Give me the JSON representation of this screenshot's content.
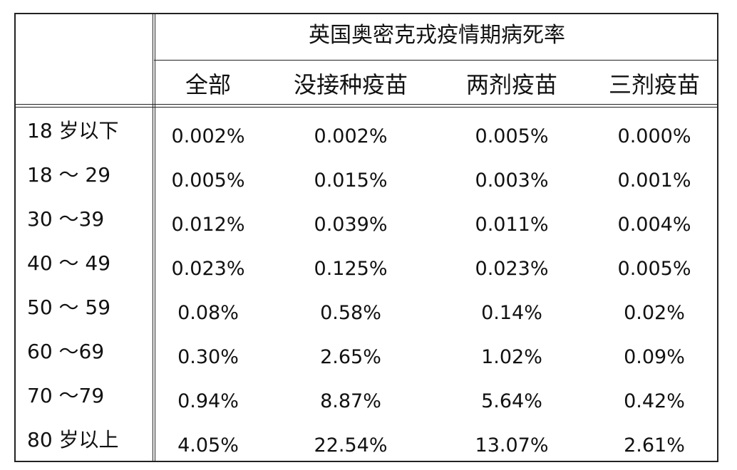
{
  "chart_data": {
    "type": "table",
    "title": "英国奥密克戎疫情期病死率",
    "columns": [
      "全部",
      "没接种疫苗",
      "两剂疫苗",
      "三剂疫苗"
    ],
    "rows": [
      {
        "label": "18 岁以下",
        "values": [
          "0.002%",
          "0.002%",
          "0.005%",
          "0.000%"
        ]
      },
      {
        "label": "18 ～ 29",
        "values": [
          "0.005%",
          "0.015%",
          "0.003%",
          "0.001%"
        ]
      },
      {
        "label": "30 ～39",
        "values": [
          "0.012%",
          "0.039%",
          "0.011%",
          "0.004%"
        ]
      },
      {
        "label": "40 ～ 49",
        "values": [
          "0.023%",
          "0.125%",
          "0.023%",
          "0.005%"
        ]
      },
      {
        "label": "50 ～ 59",
        "values": [
          "0.08%",
          "0.58%",
          "0.14%",
          "0.02%"
        ]
      },
      {
        "label": "60 ～69",
        "values": [
          "0.30%",
          "2.65%",
          "1.02%",
          "0.09%"
        ]
      },
      {
        "label": "70 ～79",
        "values": [
          "0.94%",
          "8.87%",
          "5.64%",
          "0.42%"
        ]
      },
      {
        "label": "80 岁以上",
        "values": [
          "4.05%",
          "22.54%",
          "13.07%",
          "2.61%"
        ]
      }
    ]
  }
}
